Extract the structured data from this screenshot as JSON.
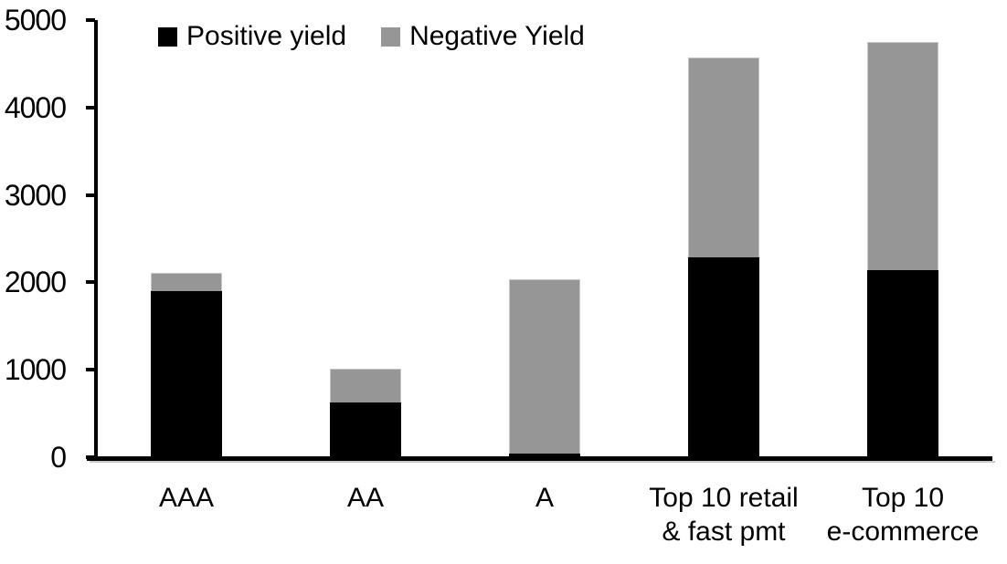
{
  "chart_data": {
    "type": "bar",
    "stacked": true,
    "title": "",
    "xlabel": "",
    "ylabel": "",
    "categories": [
      "AAA",
      "AA",
      "A",
      "Top 10 retail\n& fast pmt",
      "Top 10\ne-commerce"
    ],
    "series": [
      {
        "name": "Positive yield",
        "color": "#000000",
        "values": [
          1900,
          630,
          45,
          2290,
          2140
        ]
      },
      {
        "name": "Negative Yield",
        "color": "#969696",
        "values": [
          210,
          380,
          1990,
          2280,
          2610
        ]
      }
    ],
    "totals": [
      2110,
      1010,
      2035,
      4570,
      4750
    ],
    "ylim": [
      0,
      5000
    ],
    "yticks": [
      0,
      1000,
      2000,
      3000,
      4000,
      5000
    ],
    "grid": false,
    "legend_position": "top",
    "colors": {
      "axis": "#000000",
      "positive": "#000000",
      "negative": "#969696",
      "background": "#ffffff"
    }
  }
}
